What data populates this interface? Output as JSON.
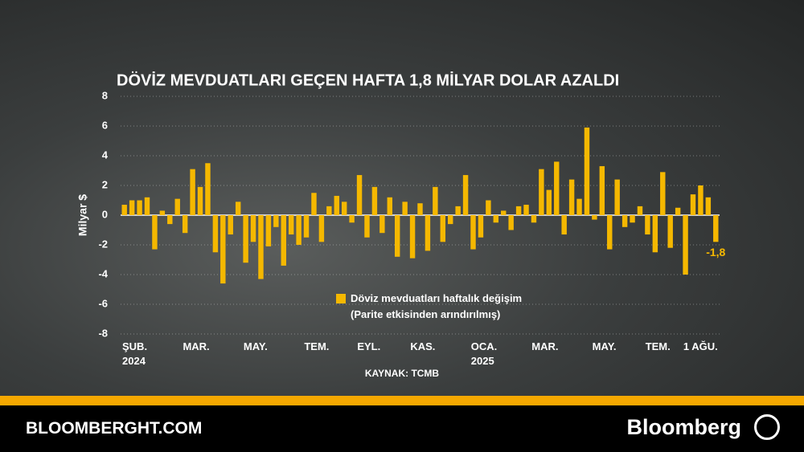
{
  "chart_data": {
    "type": "bar",
    "title": "DÖVİZ MEVDUATLARI GEÇEN HAFTA 1,8 MİLYAR DOLAR AZALDI",
    "y_label": "Milyar $",
    "source": "KAYNAK: TCMB",
    "categories": [
      "ŞUB.\n2024",
      null,
      null,
      null,
      null,
      null,
      null,
      null,
      "MAR.",
      null,
      null,
      null,
      null,
      null,
      null,
      null,
      "MAY.",
      null,
      null,
      null,
      null,
      null,
      null,
      null,
      "TEM.",
      null,
      null,
      null,
      null,
      null,
      null,
      "EYL.",
      null,
      null,
      null,
      null,
      null,
      null,
      "KAS.",
      null,
      null,
      null,
      null,
      null,
      null,
      null,
      "OCA.\n2025",
      null,
      null,
      null,
      null,
      null,
      null,
      null,
      "MAR.",
      null,
      null,
      null,
      null,
      null,
      null,
      null,
      "MAY.",
      null,
      null,
      null,
      null,
      null,
      null,
      "TEM.",
      null,
      null,
      null,
      null,
      "1 AĞU.",
      null,
      null,
      null,
      null
    ],
    "series": [
      {
        "name": "Döviz mevduatları haftalık değişim\n(Parite etkisinden arındırılmış)",
        "color": "#f5b800",
        "values": [
          0.7,
          1.0,
          1.0,
          1.2,
          -2.3,
          0.3,
          -0.6,
          1.1,
          -1.2,
          3.1,
          1.9,
          3.5,
          -2.5,
          -4.6,
          -1.3,
          0.9,
          -3.2,
          -1.8,
          -4.3,
          -2.1,
          -0.8,
          -3.4,
          -1.3,
          -2.0,
          -1.5,
          1.5,
          -1.8,
          0.6,
          1.3,
          0.9,
          -0.5,
          2.7,
          -1.5,
          1.9,
          -1.2,
          1.2,
          -2.8,
          0.9,
          -2.9,
          0.8,
          -2.4,
          1.9,
          -1.8,
          -0.6,
          0.6,
          2.7,
          -2.3,
          -1.5,
          1.0,
          -0.5,
          0.3,
          -1.0,
          0.6,
          0.7,
          -0.5,
          3.1,
          1.7,
          3.6,
          -1.3,
          2.4,
          1.1,
          5.9,
          -0.3,
          3.3,
          -2.3,
          2.4,
          -0.8,
          -0.5,
          0.6,
          -1.3,
          -2.5,
          2.9,
          -2.2,
          0.5,
          -4.0,
          1.4,
          2.0,
          1.2,
          -1.8
        ],
        "value_labels": [
          null,
          null,
          null,
          null,
          null,
          null,
          null,
          null,
          null,
          null,
          null,
          null,
          null,
          null,
          null,
          null,
          null,
          null,
          null,
          null,
          null,
          null,
          null,
          null,
          null,
          null,
          null,
          null,
          null,
          null,
          null,
          null,
          null,
          null,
          null,
          null,
          null,
          null,
          null,
          null,
          null,
          null,
          null,
          null,
          null,
          null,
          null,
          null,
          null,
          null,
          null,
          null,
          null,
          null,
          null,
          null,
          null,
          null,
          null,
          null,
          null,
          null,
          null,
          null,
          null,
          null,
          null,
          null,
          null,
          null,
          null,
          null,
          null,
          null,
          null,
          null,
          null,
          null,
          "-1,8"
        ]
      }
    ],
    "ylim": [
      -8,
      8
    ],
    "yticks": [
      -8,
      -6,
      -4,
      -2,
      0,
      2,
      4,
      6,
      8
    ],
    "grid": true
  },
  "footer": {
    "site": "BLOOMBERGHT.COM",
    "brand": "Bloomberg"
  }
}
